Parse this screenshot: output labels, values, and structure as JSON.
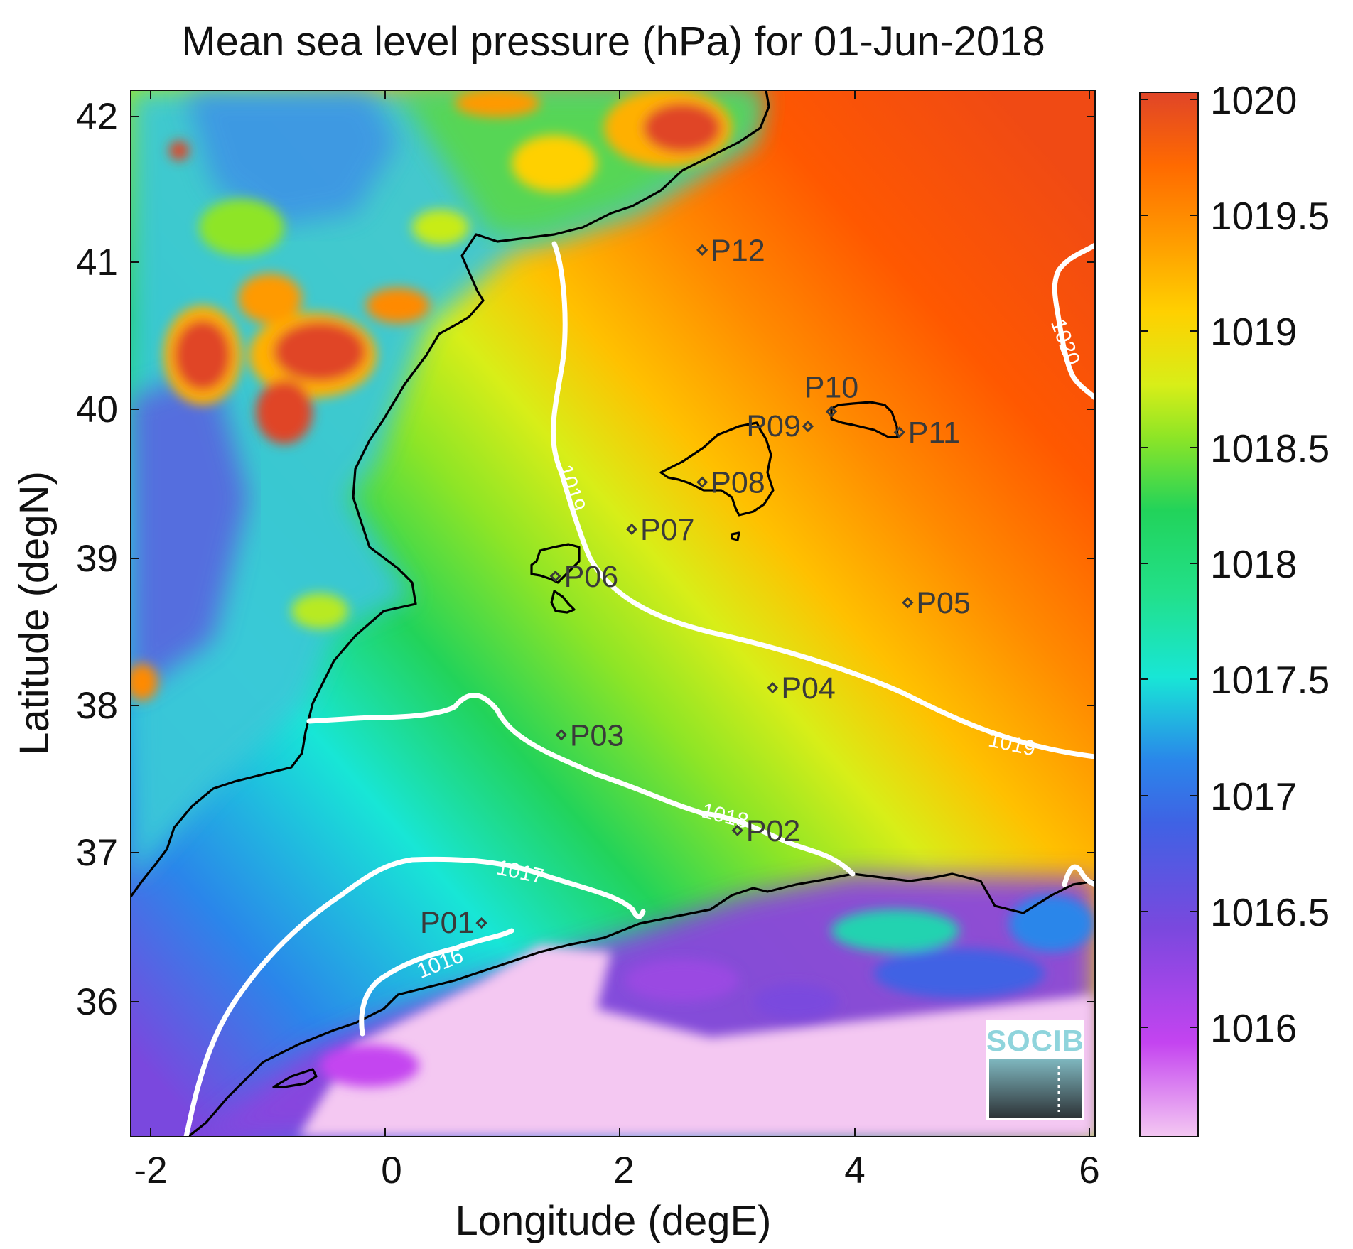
{
  "figure": {
    "title": "Mean sea level pressure (hPa) for 01-Jun-2018",
    "xlabel": "Longitude (degE)",
    "ylabel": "Latitude (degN)",
    "x_ticks": [
      "-2",
      "0",
      "2",
      "4",
      "6"
    ],
    "y_ticks": [
      "42",
      "41",
      "40",
      "39",
      "38",
      "37",
      "36"
    ],
    "colorbar": {
      "ticks": [
        "1020",
        "1019.5",
        "1019",
        "1018.5",
        "1018",
        "1017.5",
        "1017",
        "1016.5",
        "1016"
      ],
      "colors": [
        "#f4c8f2",
        "#c444f0",
        "#7a48de",
        "#2a86ea",
        "#18e6d6",
        "#22d35a",
        "#4ad430",
        "#d8ee18",
        "#ffc000",
        "#ff8a00",
        "#ff5800",
        "#e04528"
      ]
    },
    "contour_labels": [
      "1020",
      "1019",
      "1019",
      "1018",
      "1017",
      "1016"
    ],
    "logo": "SOCIB"
  },
  "chart_data": {
    "type": "heatmap",
    "title": "Mean sea level pressure (hPa) for 01-Jun-2018",
    "xlabel": "Longitude (degE)",
    "ylabel": "Latitude (degN)",
    "xlim": [
      -2.2,
      6.1
    ],
    "ylim": [
      35.2,
      42.2
    ],
    "color_range": [
      1015.55,
      1020.05
    ],
    "contour_levels": [
      1016,
      1017,
      1018,
      1019,
      1020
    ],
    "stations": [
      {
        "name": "P01",
        "lon": 0.82,
        "lat": 36.52
      },
      {
        "name": "P02",
        "lon": 3.0,
        "lat": 37.15
      },
      {
        "name": "P03",
        "lon": 1.5,
        "lat": 37.8
      },
      {
        "name": "P04",
        "lon": 3.3,
        "lat": 38.12
      },
      {
        "name": "P05",
        "lon": 4.45,
        "lat": 38.7
      },
      {
        "name": "P06",
        "lon": 1.45,
        "lat": 38.88
      },
      {
        "name": "P07",
        "lon": 2.1,
        "lat": 39.2
      },
      {
        "name": "P08",
        "lon": 2.7,
        "lat": 39.52
      },
      {
        "name": "P09",
        "lon": 3.6,
        "lat": 39.9
      },
      {
        "name": "P10",
        "lon": 3.8,
        "lat": 40.0
      },
      {
        "name": "P11",
        "lon": 4.38,
        "lat": 39.86
      },
      {
        "name": "P12",
        "lon": 2.7,
        "lat": 41.1
      }
    ]
  }
}
